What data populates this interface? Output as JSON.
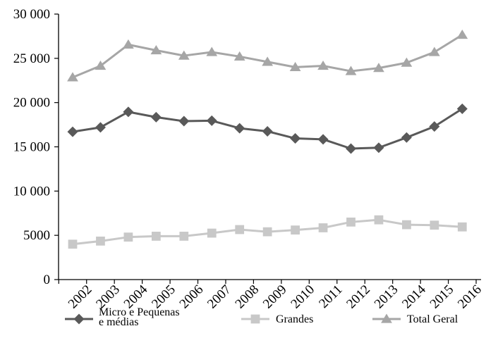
{
  "chart_data": {
    "type": "line",
    "categories": [
      "2002",
      "2003",
      "2004",
      "2005",
      "2006",
      "2007",
      "2008",
      "2009",
      "2010",
      "2011",
      "2012",
      "2013",
      "2014",
      "2015",
      "2016"
    ],
    "series": [
      {
        "name": "Micro e Pequenas e médias",
        "name_lines": [
          "Micro e Pequenas",
          "e médias"
        ],
        "color": "#595959",
        "marker": "diamond",
        "values": [
          16700,
          17200,
          18950,
          18350,
          17900,
          17950,
          17100,
          16750,
          15950,
          15850,
          14800,
          14900,
          16050,
          17300,
          19300
        ]
      },
      {
        "name": "Grandes",
        "name_lines": [
          "Grandes"
        ],
        "color": "#c8c8c8",
        "marker": "square",
        "values": [
          4000,
          4350,
          4800,
          4900,
          4900,
          5250,
          5650,
          5400,
          5600,
          5850,
          6500,
          6750,
          6200,
          6150,
          5950
        ]
      },
      {
        "name": "Total Geral",
        "name_lines": [
          "Total Geral"
        ],
        "color": "#a6a6a6",
        "marker": "triangle",
        "values": [
          22850,
          24150,
          26550,
          25900,
          25300,
          25700,
          25200,
          24600,
          24000,
          24150,
          23550,
          23900,
          24500,
          25700,
          27650
        ]
      }
    ],
    "yticks": [
      {
        "value": 0,
        "label": "0"
      },
      {
        "value": 5000,
        "label": "5000"
      },
      {
        "value": 10000,
        "label": "10 000"
      },
      {
        "value": 15000,
        "label": "15 000"
      },
      {
        "value": 20000,
        "label": "20 000"
      },
      {
        "value": 25000,
        "label": "25 000"
      },
      {
        "value": 30000,
        "label": "30 000"
      }
    ],
    "ylim": [
      0,
      30000
    ],
    "title": "",
    "xlabel": "",
    "ylabel": "",
    "grid": false,
    "legend_position": "bottom"
  }
}
